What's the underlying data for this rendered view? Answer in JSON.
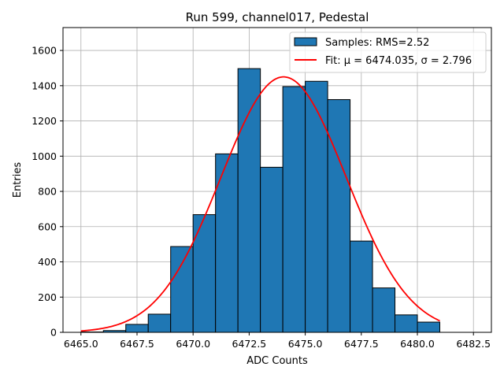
{
  "chart_data": {
    "type": "bar",
    "title": "Run 599, channel017, Pedestal",
    "xlabel": "ADC Counts",
    "ylabel": "Entries",
    "xlim": [
      6464.2,
      6483.3
    ],
    "ylim": [
      0,
      1730
    ],
    "grid": true,
    "xticks": [
      6465.0,
      6467.5,
      6470.0,
      6472.5,
      6475.0,
      6477.5,
      6480.0,
      6482.5
    ],
    "xtick_labels": [
      "6465.0",
      "6467.5",
      "6470.0",
      "6472.5",
      "6475.0",
      "6477.5",
      "6480.0",
      "6482.5"
    ],
    "yticks": [
      0,
      200,
      400,
      600,
      800,
      1000,
      1200,
      1400,
      1600
    ],
    "ytick_labels": [
      "0",
      "200",
      "400",
      "600",
      "800",
      "1000",
      "1200",
      "1400",
      "1600"
    ],
    "bins": [
      {
        "left": 6465,
        "right": 6466,
        "value": 2
      },
      {
        "left": 6466,
        "right": 6467,
        "value": 10
      },
      {
        "left": 6467,
        "right": 6468,
        "value": 45
      },
      {
        "left": 6468,
        "right": 6469,
        "value": 103
      },
      {
        "left": 6469,
        "right": 6470,
        "value": 487
      },
      {
        "left": 6470,
        "right": 6471,
        "value": 668
      },
      {
        "left": 6471,
        "right": 6472,
        "value": 1013
      },
      {
        "left": 6472,
        "right": 6473,
        "value": 1497
      },
      {
        "left": 6473,
        "right": 6474,
        "value": 937
      },
      {
        "left": 6474,
        "right": 6475,
        "value": 1395
      },
      {
        "left": 6475,
        "right": 6476,
        "value": 1425
      },
      {
        "left": 6476,
        "right": 6477,
        "value": 1321
      },
      {
        "left": 6477,
        "right": 6478,
        "value": 518
      },
      {
        "left": 6478,
        "right": 6479,
        "value": 252
      },
      {
        "left": 6479,
        "right": 6480,
        "value": 99
      },
      {
        "left": 6480,
        "right": 6481,
        "value": 58
      }
    ],
    "fit": {
      "mu": 6474.035,
      "sigma": 2.796,
      "amplitude": 1450,
      "x_range": [
        6465.0,
        6481.0
      ]
    },
    "legend": {
      "position": "top-right",
      "entries": [
        {
          "name": "Samples: RMS=2.52",
          "kind": "patch"
        },
        {
          "name": "Fit: μ = 6474.035, σ = 2.796",
          "kind": "line"
        }
      ]
    },
    "colors": {
      "bar_fill": "#1f77b4",
      "bar_edge": "#000000",
      "fit_line": "#ff0000",
      "grid": "#b0b0b0"
    }
  }
}
